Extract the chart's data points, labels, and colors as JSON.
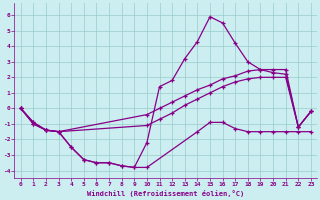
{
  "xlabel": "Windchill (Refroidissement éolien,°C)",
  "background_color": "#cceef0",
  "line_color": "#880088",
  "grid_color": "#99cccc",
  "xlim": [
    -0.5,
    23.5
  ],
  "ylim": [
    -4.5,
    6.8
  ],
  "xticks": [
    0,
    1,
    2,
    3,
    4,
    5,
    6,
    7,
    8,
    9,
    10,
    11,
    12,
    13,
    14,
    15,
    16,
    17,
    18,
    19,
    20,
    21,
    22,
    23
  ],
  "yticks": [
    -4,
    -3,
    -2,
    -1,
    0,
    1,
    2,
    3,
    4,
    5,
    6
  ],
  "line1_x": [
    0,
    1,
    2,
    3,
    4,
    5,
    6,
    7,
    8,
    9,
    10,
    14,
    15,
    16,
    17,
    18,
    19,
    20,
    21,
    22,
    23
  ],
  "line1_y": [
    0,
    -0.9,
    -1.4,
    -1.5,
    -2.5,
    -3.3,
    -3.5,
    -3.5,
    -3.7,
    -3.8,
    -3.8,
    -1.5,
    -0.9,
    -0.9,
    -1.3,
    -1.5,
    -1.5,
    -1.5,
    -1.5,
    -1.5,
    -1.5
  ],
  "line2_x": [
    0,
    1,
    2,
    3,
    4,
    5,
    6,
    7,
    8,
    9,
    10,
    11,
    12,
    13,
    14,
    15,
    16,
    17,
    18,
    19,
    20,
    21,
    22,
    23
  ],
  "line2_y": [
    0,
    -0.9,
    -1.4,
    -1.5,
    -2.5,
    -3.3,
    -3.5,
    -3.5,
    -3.7,
    -3.8,
    -2.2,
    1.4,
    1.8,
    3.2,
    4.3,
    5.9,
    5.5,
    4.2,
    3.0,
    2.5,
    2.3,
    2.2,
    -1.2,
    -0.2
  ],
  "line3_x": [
    0,
    1,
    2,
    3,
    10,
    11,
    12,
    13,
    14,
    15,
    16,
    17,
    18,
    19,
    20,
    21,
    22,
    23
  ],
  "line3_y": [
    0,
    -1.0,
    -1.4,
    -1.5,
    -0.4,
    0.0,
    0.4,
    0.8,
    1.2,
    1.5,
    1.9,
    2.1,
    2.4,
    2.5,
    2.5,
    2.5,
    -1.2,
    -0.2
  ],
  "line4_x": [
    0,
    1,
    2,
    3,
    10,
    11,
    12,
    13,
    14,
    15,
    16,
    17,
    18,
    19,
    20,
    21,
    22,
    23
  ],
  "line4_y": [
    0,
    -1.0,
    -1.4,
    -1.5,
    -1.1,
    -0.7,
    -0.3,
    0.2,
    0.6,
    1.0,
    1.4,
    1.7,
    1.9,
    2.0,
    2.0,
    2.0,
    -1.2,
    -0.2
  ]
}
